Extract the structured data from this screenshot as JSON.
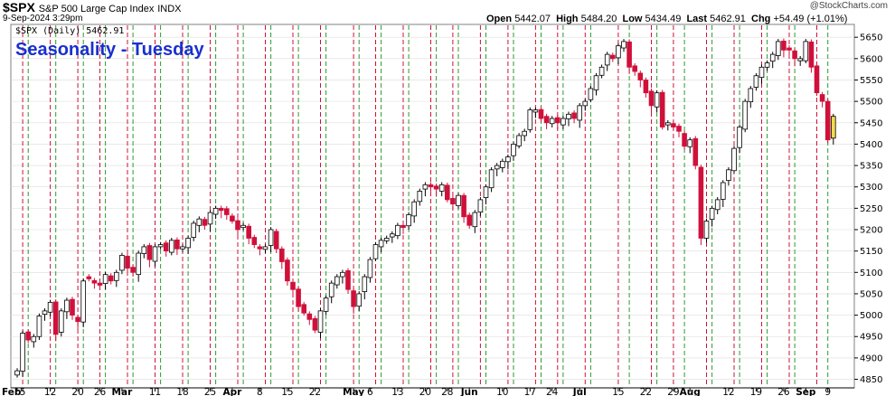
{
  "header": {
    "symbol": "$SPX",
    "description": "S&P 500 Large Cap Index",
    "exchange": "INDX",
    "timestamp": "9-Sep-2024 3:29pm",
    "watermark": "@StockCharts.com",
    "open_label": "Open",
    "open": "5442.07",
    "high_label": "High",
    "high": "5484.20",
    "low_label": "Low",
    "low": "5434.49",
    "last_label": "Last",
    "last": "5462.91",
    "chg_label": "Chg",
    "chg": "+54.49 (+1.01%)",
    "legend": "$SPX (Daily) 5462.91",
    "annotation": "Seasonality - Tuesday"
  },
  "colors": {
    "up_candle_fill": "#ffffff",
    "down_candle_fill": "#d0103a",
    "last_candle_fill": "#f2d94e",
    "green_line": "#2d9a2d",
    "red_line": "#d0103a",
    "annotation": "#1a2fd0",
    "grid": "#dcdcdc"
  },
  "chart_data": {
    "type": "candlestick",
    "y_axis": {
      "side": "right",
      "min": 4830,
      "max": 5680,
      "ticks": [
        4850,
        4900,
        4950,
        5000,
        5050,
        5100,
        5150,
        5200,
        5250,
        5300,
        5350,
        5400,
        5450,
        5500,
        5550,
        5600,
        5650
      ]
    },
    "x_ticks": [
      {
        "label": "Feb",
        "i": 0,
        "bold": true
      },
      {
        "label": "5",
        "i": 1
      },
      {
        "label": "12",
        "i": 6
      },
      {
        "label": "20",
        "i": 11
      },
      {
        "label": "26",
        "i": 15
      },
      {
        "label": "Mar",
        "i": 19,
        "bold": true
      },
      {
        "label": "11",
        "i": 25
      },
      {
        "label": "18",
        "i": 30
      },
      {
        "label": "25",
        "i": 35
      },
      {
        "label": "Apr",
        "i": 39,
        "bold": true
      },
      {
        "label": "8",
        "i": 44
      },
      {
        "label": "15",
        "i": 49
      },
      {
        "label": "22",
        "i": 54
      },
      {
        "label": "May",
        "i": 61,
        "bold": true
      },
      {
        "label": "6",
        "i": 64
      },
      {
        "label": "13",
        "i": 69
      },
      {
        "label": "20",
        "i": 74
      },
      {
        "label": "28",
        "i": 78
      },
      {
        "label": "Jun",
        "i": 82,
        "bold": true
      },
      {
        "label": "10",
        "i": 88
      },
      {
        "label": "17",
        "i": 93
      },
      {
        "label": "24",
        "i": 97
      },
      {
        "label": "Jul",
        "i": 102,
        "bold": true
      },
      {
        "label": "15",
        "i": 109
      },
      {
        "label": "22",
        "i": 114
      },
      {
        "label": "29",
        "i": 119
      },
      {
        "label": "Aug",
        "i": 122,
        "bold": true
      },
      {
        "label": "12",
        "i": 129
      },
      {
        "label": "19",
        "i": 134
      },
      {
        "label": "26",
        "i": 139
      },
      {
        "label": "Sep",
        "i": 143,
        "bold": true
      },
      {
        "label": "9",
        "i": 147
      }
    ],
    "green_lines_at": [
      2,
      7,
      12,
      16,
      21,
      26,
      31,
      36,
      41,
      46,
      51,
      56,
      62,
      66,
      71,
      76,
      80,
      85,
      90,
      95,
      99,
      104,
      111,
      116,
      121,
      126,
      131,
      136,
      141,
      147
    ],
    "red_lines_at": [
      1,
      6,
      11,
      15,
      20,
      25,
      30,
      35,
      40,
      45,
      50,
      55,
      61,
      65,
      70,
      75,
      79,
      84,
      89,
      94,
      98,
      103,
      109,
      115,
      119,
      125,
      130,
      135,
      140,
      145
    ],
    "closes": [
      4870,
      4958,
      4942,
      4950,
      4998,
      5010,
      5030,
      4955,
      5010,
      5035,
      5000,
      4985,
      5080,
      5085,
      5075,
      5070,
      5095,
      5080,
      5100,
      5140,
      5110,
      5100,
      5145,
      5160,
      5130,
      5160,
      5165,
      5150,
      5175,
      5155,
      5160,
      5180,
      5215,
      5225,
      5210,
      5240,
      5250,
      5245,
      5235,
      5220,
      5200,
      5210,
      5180,
      5165,
      5155,
      5160,
      5200,
      5155,
      5125,
      5080,
      5060,
      5020,
      5005,
      4990,
      4965,
      5010,
      5040,
      5075,
      5090,
      5100,
      5060,
      5020,
      5050,
      5090,
      5130,
      5165,
      5175,
      5180,
      5190,
      5210,
      5205,
      5235,
      5265,
      5290,
      5305,
      5300,
      5295,
      5305,
      5270,
      5260,
      5280,
      5230,
      5210,
      5240,
      5270,
      5300,
      5340,
      5350,
      5360,
      5370,
      5400,
      5420,
      5430,
      5480,
      5480,
      5460,
      5450,
      5460,
      5450,
      5460,
      5470,
      5460,
      5490,
      5500,
      5530,
      5560,
      5580,
      5610,
      5600,
      5630,
      5640,
      5580,
      5570,
      5550,
      5520,
      5490,
      5520,
      5440,
      5450,
      5440,
      5430,
      5395,
      5410,
      5350,
      5180,
      5220,
      5250,
      5270,
      5310,
      5340,
      5390,
      5440,
      5500,
      5530,
      5560,
      5580,
      5590,
      5610,
      5640,
      5620,
      5620,
      5600,
      5600,
      5640,
      5580,
      5520,
      5500,
      5410,
      5465
    ]
  }
}
